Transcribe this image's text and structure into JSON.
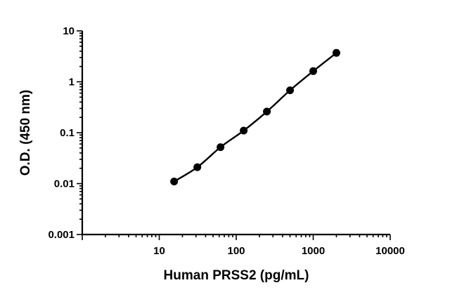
{
  "chart_data": {
    "type": "scatter",
    "title": "",
    "xlabel": "Human PRSS2 (pg/mL)",
    "ylabel": "O.D. (450 nm)",
    "xscale": "log",
    "yscale": "log",
    "xlim": [
      1,
      10000
    ],
    "ylim": [
      0.001,
      10
    ],
    "x_ticks": [
      10,
      100,
      1000,
      10000
    ],
    "y_ticks": [
      0.001,
      0.01,
      0.1,
      1,
      10
    ],
    "x_tick_labels": [
      "10",
      "100",
      "1000",
      "10000"
    ],
    "y_tick_labels": [
      "0.001",
      "0.01",
      "0.1",
      "1",
      "10"
    ],
    "grid": false,
    "fit_line": true,
    "series": [
      {
        "x": [
          15.6,
          31.25,
          62.5,
          125,
          250,
          500,
          1000,
          2000
        ],
        "y": [
          0.011,
          0.021,
          0.052,
          0.11,
          0.26,
          0.68,
          1.62,
          3.7
        ]
      }
    ]
  }
}
